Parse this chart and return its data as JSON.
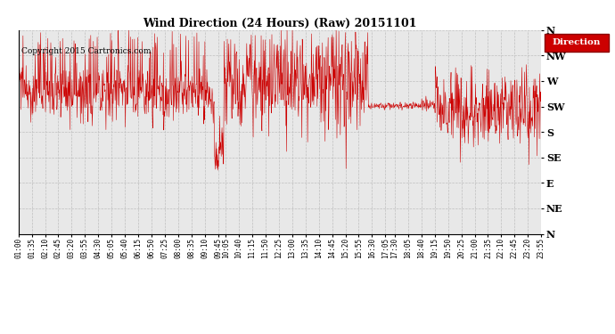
{
  "title": "Wind Direction (24 Hours) (Raw) 20151101",
  "copyright": "Copyright 2015 Cartronics.com",
  "legend_label": "Direction",
  "legend_bg": "#cc0000",
  "legend_fg": "#ffffff",
  "line_color": "#cc0000",
  "background_color": "#ffffff",
  "plot_bg": "#e8e8e8",
  "grid_color": "#bbbbbb",
  "ytick_labels": [
    "N",
    "NW",
    "W",
    "SW",
    "S",
    "SE",
    "E",
    "NE",
    "N"
  ],
  "ytick_values": [
    360,
    315,
    270,
    225,
    180,
    135,
    90,
    45,
    0
  ],
  "ymin": 0,
  "ymax": 360,
  "xtick_labels": [
    "01:00",
    "01:35",
    "02:10",
    "02:45",
    "03:20",
    "03:55",
    "04:30",
    "05:05",
    "05:40",
    "06:15",
    "06:50",
    "07:25",
    "08:00",
    "08:35",
    "09:10",
    "09:45",
    "10:05",
    "10:40",
    "11:15",
    "11:50",
    "12:25",
    "13:00",
    "13:35",
    "14:10",
    "14:45",
    "15:20",
    "15:55",
    "16:30",
    "17:05",
    "17:30",
    "18:05",
    "18:40",
    "19:15",
    "19:50",
    "20:25",
    "21:00",
    "21:35",
    "22:10",
    "22:45",
    "23:20",
    "23:55"
  ],
  "figwidth": 6.9,
  "figheight": 3.75,
  "dpi": 100
}
